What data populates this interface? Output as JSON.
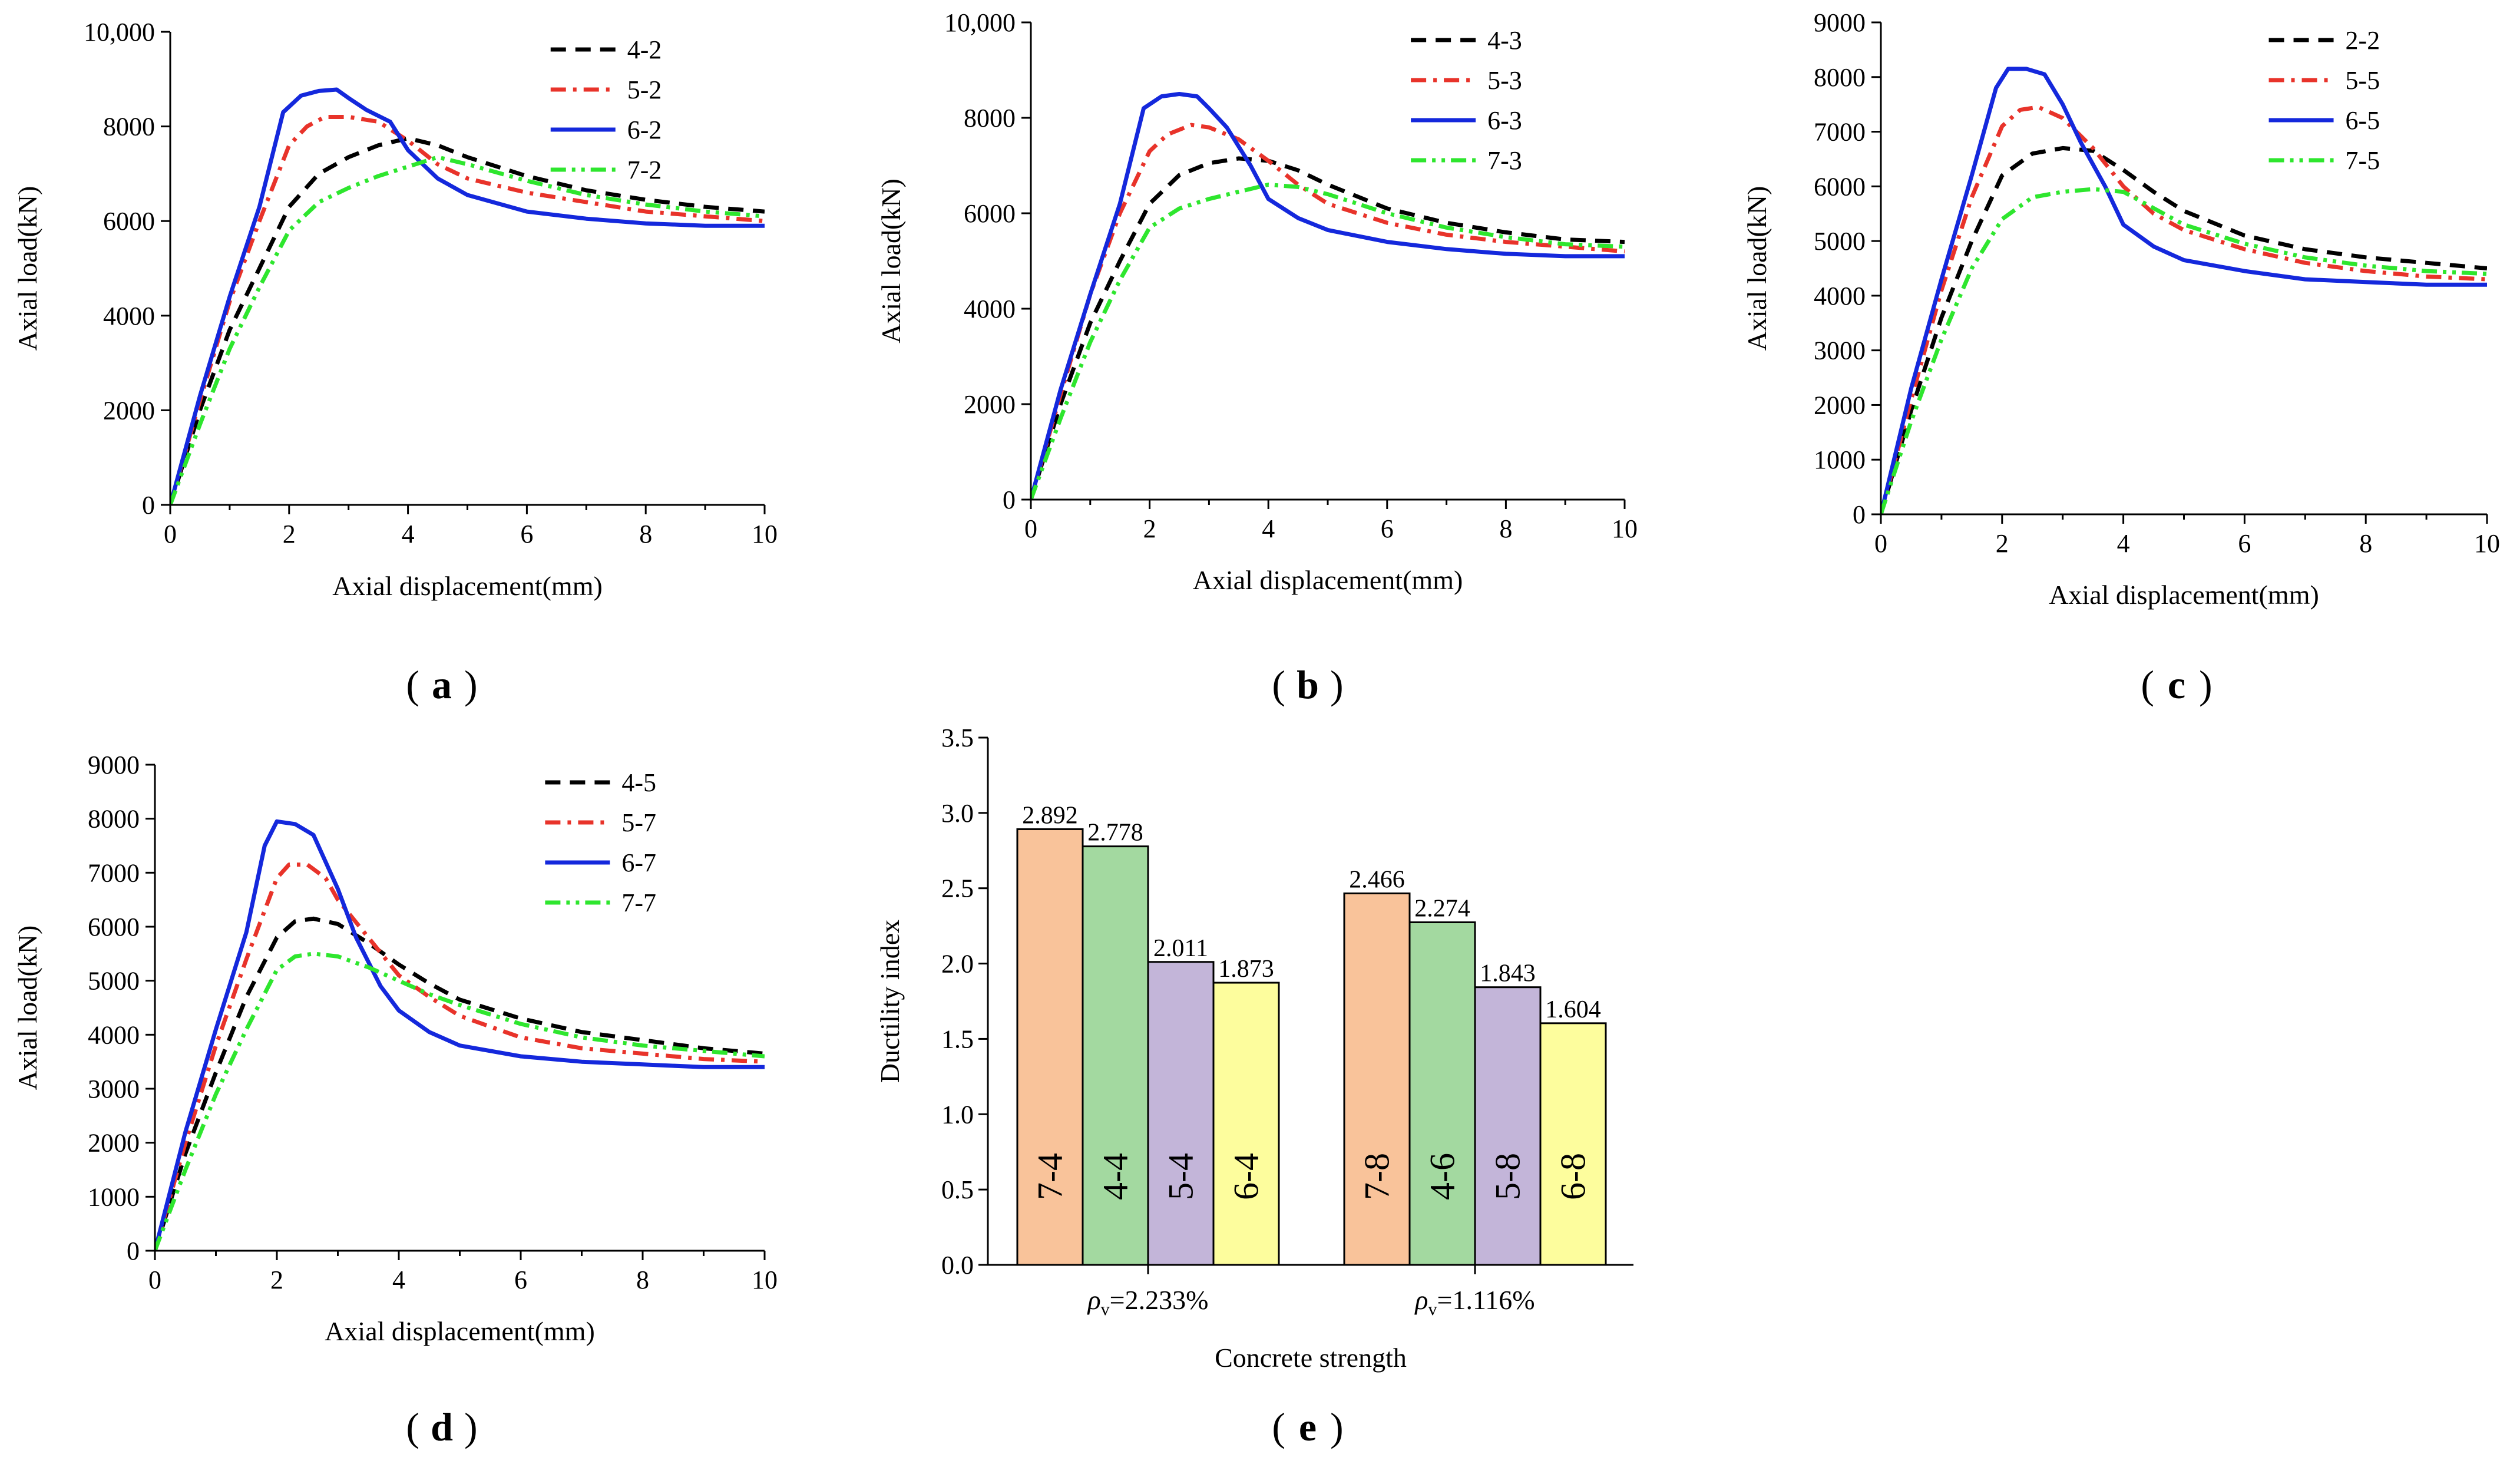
{
  "colors": {
    "series_a": "#000000",
    "series_b": "#e8332a",
    "series_c": "#1428dc",
    "series_d": "#2ee62e",
    "bar_orange": "#f9c39a",
    "bar_green": "#a3d9a0",
    "bar_purple": "#c3b5d9",
    "bar_yellow": "#fdfd9d"
  },
  "chart_data": [
    {
      "id": "a",
      "type": "line",
      "panel_label": "a",
      "title": "",
      "xlabel": "Axial displacement(mm)",
      "ylabel": "Axial load(kN)",
      "xlim": [
        0,
        10
      ],
      "ylim": [
        0,
        10000
      ],
      "xticks": [
        0,
        2,
        4,
        6,
        8,
        10
      ],
      "xtick_labels": [
        "0",
        "2",
        "4",
        "6",
        "8",
        "10"
      ],
      "yticks": [
        0,
        2000,
        4000,
        6000,
        8000,
        10000
      ],
      "ytick_labels": [
        "0",
        "2000",
        "4000",
        "6000",
        "8000",
        "10,000"
      ],
      "legend_position": "top-right",
      "series": [
        {
          "name": "4-2",
          "style": "dash",
          "color": "#000000",
          "x": [
            0,
            0.5,
            1,
            1.5,
            2,
            2.5,
            3,
            3.5,
            4,
            4.5,
            5,
            6,
            7,
            8,
            9,
            10
          ],
          "y": [
            0,
            2000,
            3700,
            5000,
            6300,
            7000,
            7350,
            7600,
            7750,
            7600,
            7350,
            6950,
            6650,
            6450,
            6300,
            6200
          ]
        },
        {
          "name": "5-2",
          "style": "dashdot",
          "color": "#e8332a",
          "x": [
            0,
            0.5,
            1,
            1.5,
            2,
            2.3,
            2.6,
            3,
            3.5,
            4,
            4.5,
            5,
            6,
            7,
            8,
            9,
            10
          ],
          "y": [
            0,
            2200,
            4300,
            6000,
            7600,
            8000,
            8200,
            8200,
            8100,
            7700,
            7200,
            6900,
            6600,
            6400,
            6200,
            6100,
            6000
          ]
        },
        {
          "name": "6-2",
          "style": "solid",
          "color": "#1428dc",
          "x": [
            0,
            0.5,
            1,
            1.5,
            1.9,
            2.2,
            2.5,
            2.8,
            3,
            3.3,
            3.7,
            4,
            4.5,
            5,
            6,
            7,
            8,
            9,
            10
          ],
          "y": [
            0,
            2300,
            4400,
            6300,
            8300,
            8650,
            8750,
            8780,
            8600,
            8350,
            8100,
            7500,
            6900,
            6550,
            6200,
            6050,
            5950,
            5900,
            5900
          ]
        },
        {
          "name": "7-2",
          "style": "dashdotdot",
          "color": "#2ee62e",
          "x": [
            0,
            0.5,
            1,
            1.5,
            2,
            2.5,
            3,
            3.5,
            4,
            4.5,
            5,
            6,
            7,
            8,
            9,
            10
          ],
          "y": [
            0,
            1700,
            3300,
            4600,
            5800,
            6400,
            6700,
            6950,
            7150,
            7350,
            7200,
            6850,
            6550,
            6350,
            6200,
            6100
          ]
        }
      ]
    },
    {
      "id": "b",
      "type": "line",
      "panel_label": "b",
      "title": "",
      "xlabel": "Axial displacement(mm)",
      "ylabel": "Axial load(kN)",
      "xlim": [
        0,
        10
      ],
      "ylim": [
        0,
        10000
      ],
      "xticks": [
        0,
        2,
        4,
        6,
        8,
        10
      ],
      "xtick_labels": [
        "0",
        "2",
        "4",
        "6",
        "8",
        "10"
      ],
      "yticks": [
        0,
        2000,
        4000,
        6000,
        8000,
        10000
      ],
      "ytick_labels": [
        "0",
        "2000",
        "4000",
        "6000",
        "8000",
        "10,000"
      ],
      "legend_position": "top-right",
      "series": [
        {
          "name": "4-3",
          "style": "dash",
          "color": "#000000",
          "x": [
            0,
            0.5,
            1,
            1.5,
            2,
            2.5,
            3,
            3.5,
            4,
            4.5,
            5,
            6,
            7,
            8,
            9,
            10
          ],
          "y": [
            0,
            2000,
            3700,
            5000,
            6200,
            6800,
            7050,
            7150,
            7100,
            6900,
            6600,
            6100,
            5800,
            5600,
            5450,
            5400
          ]
        },
        {
          "name": "5-3",
          "style": "dashdot",
          "color": "#e8332a",
          "x": [
            0,
            0.5,
            1,
            1.5,
            2,
            2.3,
            2.7,
            3,
            3.5,
            4,
            4.5,
            5,
            6,
            7,
            8,
            9,
            10
          ],
          "y": [
            0,
            2200,
            4300,
            6000,
            7300,
            7650,
            7850,
            7800,
            7550,
            7100,
            6600,
            6200,
            5800,
            5550,
            5400,
            5300,
            5200
          ]
        },
        {
          "name": "6-3",
          "style": "solid",
          "color": "#1428dc",
          "x": [
            0,
            0.5,
            1,
            1.5,
            1.9,
            2.2,
            2.5,
            2.8,
            3,
            3.3,
            3.7,
            4,
            4.5,
            5,
            6,
            7,
            8,
            9,
            10
          ],
          "y": [
            0,
            2300,
            4300,
            6200,
            8200,
            8450,
            8500,
            8450,
            8200,
            7800,
            7000,
            6300,
            5900,
            5650,
            5400,
            5250,
            5150,
            5100,
            5100
          ]
        },
        {
          "name": "7-3",
          "style": "dashdotdot",
          "color": "#2ee62e",
          "x": [
            0,
            0.5,
            1,
            1.5,
            2,
            2.5,
            3,
            3.5,
            4,
            4.5,
            5,
            6,
            7,
            8,
            9,
            10
          ],
          "y": [
            0,
            1700,
            3300,
            4600,
            5700,
            6100,
            6300,
            6450,
            6600,
            6550,
            6400,
            6000,
            5700,
            5500,
            5350,
            5300
          ]
        }
      ]
    },
    {
      "id": "c",
      "type": "line",
      "panel_label": "c",
      "title": "",
      "xlabel": "Axial displacement(mm)",
      "ylabel": "Axial load(kN)",
      "xlim": [
        0,
        10
      ],
      "ylim": [
        0,
        9000
      ],
      "xticks": [
        0,
        2,
        4,
        6,
        8,
        10
      ],
      "xtick_labels": [
        "0",
        "2",
        "4",
        "6",
        "8",
        "10"
      ],
      "yticks": [
        0,
        1000,
        2000,
        3000,
        4000,
        5000,
        6000,
        7000,
        8000,
        9000
      ],
      "ytick_labels": [
        "0",
        "1000",
        "2000",
        "3000",
        "4000",
        "5000",
        "6000",
        "7000",
        "8000",
        "9000"
      ],
      "legend_position": "top-right",
      "series": [
        {
          "name": "2-2",
          "style": "dash",
          "color": "#000000",
          "x": [
            0,
            0.5,
            1,
            1.5,
            2,
            2.5,
            3,
            3.5,
            4,
            4.5,
            5,
            6,
            7,
            8,
            9,
            10
          ],
          "y": [
            0,
            1900,
            3600,
            5000,
            6200,
            6600,
            6700,
            6650,
            6300,
            5900,
            5550,
            5100,
            4850,
            4700,
            4600,
            4500
          ]
        },
        {
          "name": "5-5",
          "style": "dashdot",
          "color": "#e8332a",
          "x": [
            0,
            0.5,
            1,
            1.5,
            2,
            2.3,
            2.6,
            3,
            3.5,
            4,
            4.5,
            5,
            6,
            7,
            8,
            9,
            10
          ],
          "y": [
            0,
            2100,
            4100,
            5800,
            7100,
            7400,
            7450,
            7250,
            6700,
            6000,
            5500,
            5200,
            4850,
            4600,
            4450,
            4350,
            4300
          ]
        },
        {
          "name": "6-5",
          "style": "solid",
          "color": "#1428dc",
          "x": [
            0,
            0.5,
            1,
            1.5,
            1.9,
            2.1,
            2.4,
            2.7,
            3,
            3.3,
            3.7,
            4,
            4.5,
            5,
            6,
            7,
            8,
            9,
            10
          ],
          "y": [
            0,
            2300,
            4300,
            6200,
            7800,
            8150,
            8150,
            8050,
            7500,
            6800,
            6000,
            5300,
            4900,
            4650,
            4450,
            4300,
            4250,
            4200,
            4200
          ]
        },
        {
          "name": "7-5",
          "style": "dashdotdot",
          "color": "#2ee62e",
          "x": [
            0,
            0.5,
            1,
            1.5,
            2,
            2.5,
            3,
            3.5,
            4,
            4.5,
            5,
            6,
            7,
            8,
            9,
            10
          ],
          "y": [
            0,
            1700,
            3200,
            4500,
            5400,
            5800,
            5900,
            5950,
            5900,
            5600,
            5300,
            4950,
            4700,
            4550,
            4450,
            4400
          ]
        }
      ]
    },
    {
      "id": "d",
      "type": "line",
      "panel_label": "d",
      "title": "",
      "xlabel": "Axial displacement(mm)",
      "ylabel": "Axial load(kN)",
      "xlim": [
        0,
        10
      ],
      "ylim": [
        0,
        9000
      ],
      "xticks": [
        0,
        2,
        4,
        6,
        8,
        10
      ],
      "xtick_labels": [
        "0",
        "2",
        "4",
        "6",
        "8",
        "10"
      ],
      "yticks": [
        0,
        1000,
        2000,
        3000,
        4000,
        5000,
        6000,
        7000,
        8000,
        9000
      ],
      "ytick_labels": [
        "0",
        "1000",
        "2000",
        "3000",
        "4000",
        "5000",
        "6000",
        "7000",
        "8000",
        "9000"
      ],
      "legend_position": "top-right",
      "series": [
        {
          "name": "4-5",
          "style": "dash",
          "color": "#000000",
          "x": [
            0,
            0.5,
            1,
            1.5,
            2,
            2.3,
            2.6,
            3,
            3.5,
            4,
            4.5,
            5,
            6,
            7,
            8,
            9,
            10
          ],
          "y": [
            0,
            1800,
            3300,
            4700,
            5800,
            6100,
            6150,
            6050,
            5700,
            5300,
            4950,
            4650,
            4300,
            4050,
            3900,
            3750,
            3650
          ]
        },
        {
          "name": "5-7",
          "style": "dashdot",
          "color": "#e8332a",
          "x": [
            0,
            0.5,
            1,
            1.5,
            2,
            2.2,
            2.5,
            2.8,
            3,
            3.5,
            4,
            4.5,
            5,
            6,
            7,
            8,
            9,
            10
          ],
          "y": [
            0,
            2000,
            3800,
            5400,
            6900,
            7150,
            7150,
            6900,
            6500,
            5800,
            5100,
            4700,
            4350,
            3950,
            3750,
            3650,
            3550,
            3500
          ]
        },
        {
          "name": "6-7",
          "style": "solid",
          "color": "#1428dc",
          "x": [
            0,
            0.5,
            1,
            1.5,
            1.8,
            2,
            2.3,
            2.6,
            3,
            3.3,
            3.7,
            4,
            4.5,
            5,
            6,
            7,
            8,
            9,
            10
          ],
          "y": [
            0,
            2200,
            4100,
            5900,
            7500,
            7950,
            7900,
            7700,
            6700,
            5800,
            4900,
            4450,
            4050,
            3800,
            3600,
            3500,
            3450,
            3400,
            3400
          ]
        },
        {
          "name": "7-7",
          "style": "dashdotdot",
          "color": "#2ee62e",
          "x": [
            0,
            0.5,
            1,
            1.5,
            2,
            2.3,
            2.6,
            3,
            3.5,
            4,
            4.5,
            5,
            6,
            7,
            8,
            9,
            10
          ],
          "y": [
            0,
            1500,
            2900,
            4100,
            5200,
            5450,
            5500,
            5450,
            5250,
            5000,
            4750,
            4550,
            4200,
            3950,
            3800,
            3700,
            3600
          ]
        }
      ]
    },
    {
      "id": "e",
      "type": "bar",
      "panel_label": "e",
      "title": "",
      "xlabel": "Concrete strength",
      "ylabel": "Ductility index",
      "ylim": [
        0,
        3.5
      ],
      "yticks": [
        0,
        0.5,
        1.0,
        1.5,
        2.0,
        2.5,
        3.0,
        3.5
      ],
      "ytick_labels": [
        "0.0",
        "0.5",
        "1.0",
        "1.5",
        "2.0",
        "2.5",
        "3.0",
        "3.5"
      ],
      "groups": [
        {
          "label_prefix": "ρ",
          "label_sub": "v",
          "label_suffix": "=2.233%",
          "bars": [
            {
              "name": "7-4",
              "value": 2.892,
              "label": "2.892",
              "color": "#f9c39a"
            },
            {
              "name": "4-4",
              "value": 2.778,
              "label": "2.778",
              "color": "#a3d9a0"
            },
            {
              "name": "5-4",
              "value": 2.011,
              "label": "2.011",
              "color": "#c3b5d9"
            },
            {
              "name": "6-4",
              "value": 1.873,
              "label": "1.873",
              "color": "#fdfd9d"
            }
          ]
        },
        {
          "label_prefix": "ρ",
          "label_sub": "v",
          "label_suffix": "=1.116%",
          "bars": [
            {
              "name": "7-8",
              "value": 2.466,
              "label": "2.466",
              "color": "#f9c39a"
            },
            {
              "name": "4-6",
              "value": 2.274,
              "label": "2.274",
              "color": "#a3d9a0"
            },
            {
              "name": "5-8",
              "value": 1.843,
              "label": "1.843",
              "color": "#c3b5d9"
            },
            {
              "name": "6-8",
              "value": 1.604,
              "label": "1.604",
              "color": "#fdfd9d"
            }
          ]
        }
      ]
    }
  ]
}
